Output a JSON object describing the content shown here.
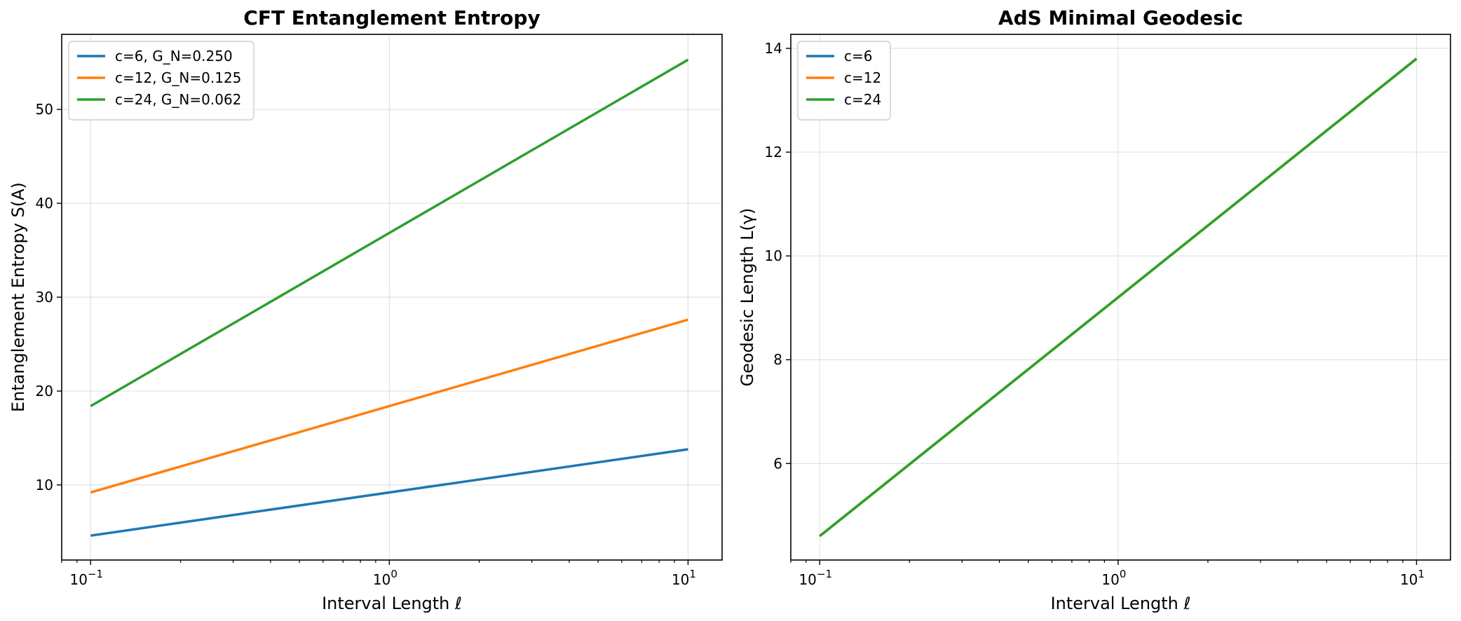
{
  "chart_data": [
    {
      "type": "line",
      "title": "CFT Entanglement Entropy",
      "xlabel": "Interval Length ℓ",
      "ylabel": "Entanglement Entropy S(A)",
      "xscale": "log",
      "xlim": [
        0.08,
        13
      ],
      "ylim": [
        2,
        58
      ],
      "x_ticks": [
        0.1,
        1,
        10
      ],
      "x_tick_labels": [
        "10",
        "10",
        "10"
      ],
      "x_tick_exponents": [
        "−1",
        "0",
        "1"
      ],
      "y_ticks": [
        10,
        20,
        30,
        40,
        50
      ],
      "grid": true,
      "legend": "upper-left",
      "x": [
        0.1,
        10
      ],
      "series": [
        {
          "name": "c=6, G_N=0.250",
          "color": "#1f77b4",
          "values": [
            4.6,
            13.8
          ]
        },
        {
          "name": "c=12, G_N=0.125",
          "color": "#ff7f0e",
          "values": [
            9.2,
            27.6
          ]
        },
        {
          "name": "c=24, G_N=0.062",
          "color": "#2ca02c",
          "values": [
            18.4,
            55.3
          ]
        }
      ]
    },
    {
      "type": "line",
      "title": "AdS Minimal Geodesic",
      "xlabel": "Interval Length ℓ",
      "ylabel": "Geodesic Length L(γ)",
      "xscale": "log",
      "xlim": [
        0.08,
        13
      ],
      "ylim": [
        4.14,
        14.27
      ],
      "x_ticks": [
        0.1,
        1,
        10
      ],
      "x_tick_labels": [
        "10",
        "10",
        "10"
      ],
      "x_tick_exponents": [
        "−1",
        "0",
        "1"
      ],
      "y_ticks": [
        6,
        8,
        10,
        12,
        14
      ],
      "grid": true,
      "legend": "upper-left",
      "x": [
        0.1,
        10
      ],
      "series": [
        {
          "name": "c=6",
          "color": "#1f77b4",
          "values": [
            4.6,
            13.8
          ]
        },
        {
          "name": "c=12",
          "color": "#ff7f0e",
          "values": [
            4.6,
            13.8
          ]
        },
        {
          "name": "c=24",
          "color": "#2ca02c",
          "values": [
            4.6,
            13.8
          ]
        }
      ]
    }
  ]
}
